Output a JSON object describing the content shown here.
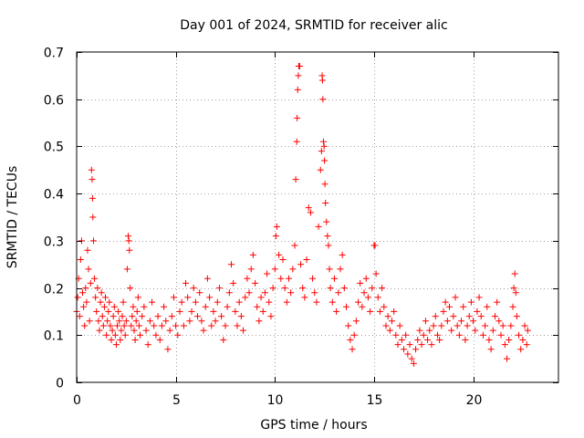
{
  "chart_data": {
    "type": "scatter",
    "title": "Day 001 of 2024, SRMTID for receiver alic",
    "xlabel": "GPS time / hours",
    "ylabel": "SRMTID / TECUs",
    "xlim": [
      0,
      24.3
    ],
    "ylim": [
      0,
      0.7
    ],
    "xticks": [
      0,
      5,
      10,
      15,
      20
    ],
    "xtick_labels": [
      "0",
      "5",
      "10",
      "15",
      "20"
    ],
    "yticks": [
      0,
      0.1,
      0.2,
      0.3,
      0.4,
      0.5,
      0.6,
      0.7
    ],
    "ytick_labels": [
      "0",
      "0.1",
      "0.2",
      "0.3",
      "0.4",
      "0.5",
      "0.6",
      "0.7"
    ],
    "grid": true,
    "marker": "+",
    "color": "#ff0000",
    "series": [
      {
        "name": "SRMTID",
        "points": [
          [
            0.0,
            0.15
          ],
          [
            0.05,
            0.18
          ],
          [
            0.1,
            0.22
          ],
          [
            0.15,
            0.14
          ],
          [
            0.2,
            0.26
          ],
          [
            0.25,
            0.3
          ],
          [
            0.3,
            0.19
          ],
          [
            0.35,
            0.16
          ],
          [
            0.4,
            0.12
          ],
          [
            0.45,
            0.2
          ],
          [
            0.5,
            0.17
          ],
          [
            0.55,
            0.28
          ],
          [
            0.6,
            0.24
          ],
          [
            0.65,
            0.13
          ],
          [
            0.7,
            0.21
          ],
          [
            0.75,
            0.45
          ],
          [
            0.78,
            0.43
          ],
          [
            0.8,
            0.39
          ],
          [
            0.82,
            0.35
          ],
          [
            0.85,
            0.3
          ],
          [
            0.9,
            0.22
          ],
          [
            0.95,
            0.18
          ],
          [
            1.0,
            0.15
          ],
          [
            1.05,
            0.2
          ],
          [
            1.1,
            0.13
          ],
          [
            1.15,
            0.11
          ],
          [
            1.2,
            0.17
          ],
          [
            1.25,
            0.19
          ],
          [
            1.3,
            0.14
          ],
          [
            1.35,
            0.12
          ],
          [
            1.4,
            0.16
          ],
          [
            1.45,
            0.18
          ],
          [
            1.5,
            0.1
          ],
          [
            1.55,
            0.13
          ],
          [
            1.6,
            0.15
          ],
          [
            1.65,
            0.17
          ],
          [
            1.7,
            0.12
          ],
          [
            1.75,
            0.09
          ],
          [
            1.8,
            0.11
          ],
          [
            1.85,
            0.14
          ],
          [
            1.9,
            0.16
          ],
          [
            1.95,
            0.1
          ],
          [
            2.0,
            0.08
          ],
          [
            2.05,
            0.12
          ],
          [
            2.1,
            0.15
          ],
          [
            2.15,
            0.13
          ],
          [
            2.2,
            0.09
          ],
          [
            2.25,
            0.11
          ],
          [
            2.3,
            0.14
          ],
          [
            2.35,
            0.17
          ],
          [
            2.4,
            0.12
          ],
          [
            2.45,
            0.1
          ],
          [
            2.5,
            0.13
          ],
          [
            2.55,
            0.24
          ],
          [
            2.6,
            0.31
          ],
          [
            2.63,
            0.3
          ],
          [
            2.66,
            0.28
          ],
          [
            2.7,
            0.2
          ],
          [
            2.75,
            0.12
          ],
          [
            2.8,
            0.14
          ],
          [
            2.85,
            0.16
          ],
          [
            2.9,
            0.11
          ],
          [
            2.95,
            0.09
          ],
          [
            3.0,
            0.13
          ],
          [
            3.05,
            0.15
          ],
          [
            3.1,
            0.18
          ],
          [
            3.15,
            0.12
          ],
          [
            3.2,
            0.1
          ],
          [
            3.3,
            0.14
          ],
          [
            3.4,
            0.16
          ],
          [
            3.5,
            0.11
          ],
          [
            3.6,
            0.08
          ],
          [
            3.7,
            0.13
          ],
          [
            3.8,
            0.17
          ],
          [
            3.9,
            0.12
          ],
          [
            4.0,
            0.1
          ],
          [
            4.1,
            0.14
          ],
          [
            4.2,
            0.09
          ],
          [
            4.3,
            0.12
          ],
          [
            4.4,
            0.16
          ],
          [
            4.5,
            0.13
          ],
          [
            4.6,
            0.07
          ],
          [
            4.7,
            0.11
          ],
          [
            4.8,
            0.14
          ],
          [
            4.9,
            0.18
          ],
          [
            5.0,
            0.12
          ],
          [
            5.1,
            0.1
          ],
          [
            5.2,
            0.15
          ],
          [
            5.3,
            0.17
          ],
          [
            5.4,
            0.12
          ],
          [
            5.5,
            0.21
          ],
          [
            5.6,
            0.18
          ],
          [
            5.7,
            0.13
          ],
          [
            5.8,
            0.15
          ],
          [
            5.9,
            0.2
          ],
          [
            6.0,
            0.17
          ],
          [
            6.1,
            0.14
          ],
          [
            6.2,
            0.19
          ],
          [
            6.3,
            0.13
          ],
          [
            6.4,
            0.11
          ],
          [
            6.5,
            0.16
          ],
          [
            6.6,
            0.22
          ],
          [
            6.7,
            0.18
          ],
          [
            6.8,
            0.12
          ],
          [
            6.9,
            0.15
          ],
          [
            7.0,
            0.13
          ],
          [
            7.1,
            0.17
          ],
          [
            7.2,
            0.2
          ],
          [
            7.3,
            0.14
          ],
          [
            7.4,
            0.09
          ],
          [
            7.5,
            0.12
          ],
          [
            7.6,
            0.16
          ],
          [
            7.7,
            0.19
          ],
          [
            7.8,
            0.25
          ],
          [
            7.9,
            0.21
          ],
          [
            8.0,
            0.15
          ],
          [
            8.1,
            0.12
          ],
          [
            8.2,
            0.17
          ],
          [
            8.3,
            0.14
          ],
          [
            8.4,
            0.11
          ],
          [
            8.5,
            0.18
          ],
          [
            8.6,
            0.22
          ],
          [
            8.7,
            0.19
          ],
          [
            8.8,
            0.24
          ],
          [
            8.9,
            0.27
          ],
          [
            9.0,
            0.21
          ],
          [
            9.1,
            0.16
          ],
          [
            9.2,
            0.13
          ],
          [
            9.3,
            0.18
          ],
          [
            9.4,
            0.15
          ],
          [
            9.5,
            0.19
          ],
          [
            9.6,
            0.23
          ],
          [
            9.7,
            0.17
          ],
          [
            9.8,
            0.14
          ],
          [
            9.9,
            0.2
          ],
          [
            10.0,
            0.24
          ],
          [
            10.05,
            0.31
          ],
          [
            10.1,
            0.33
          ],
          [
            10.2,
            0.27
          ],
          [
            10.3,
            0.22
          ],
          [
            10.4,
            0.26
          ],
          [
            10.5,
            0.2
          ],
          [
            10.6,
            0.17
          ],
          [
            10.7,
            0.22
          ],
          [
            10.8,
            0.19
          ],
          [
            10.9,
            0.24
          ],
          [
            11.0,
            0.29
          ],
          [
            11.05,
            0.43
          ],
          [
            11.1,
            0.51
          ],
          [
            11.12,
            0.56
          ],
          [
            11.15,
            0.62
          ],
          [
            11.18,
            0.65
          ],
          [
            11.2,
            0.67
          ],
          [
            11.25,
            0.67
          ],
          [
            11.3,
            0.25
          ],
          [
            11.4,
            0.2
          ],
          [
            11.5,
            0.18
          ],
          [
            11.6,
            0.26
          ],
          [
            11.7,
            0.37
          ],
          [
            11.8,
            0.36
          ],
          [
            11.9,
            0.22
          ],
          [
            12.0,
            0.19
          ],
          [
            12.1,
            0.17
          ],
          [
            12.2,
            0.33
          ],
          [
            12.3,
            0.45
          ],
          [
            12.35,
            0.49
          ],
          [
            12.38,
            0.65
          ],
          [
            12.4,
            0.64
          ],
          [
            12.42,
            0.6
          ],
          [
            12.45,
            0.51
          ],
          [
            12.48,
            0.5
          ],
          [
            12.5,
            0.47
          ],
          [
            12.52,
            0.42
          ],
          [
            12.55,
            0.38
          ],
          [
            12.6,
            0.34
          ],
          [
            12.65,
            0.31
          ],
          [
            12.7,
            0.29
          ],
          [
            12.75,
            0.24
          ],
          [
            12.8,
            0.2
          ],
          [
            12.9,
            0.17
          ],
          [
            13.0,
            0.22
          ],
          [
            13.1,
            0.15
          ],
          [
            13.2,
            0.19
          ],
          [
            13.3,
            0.24
          ],
          [
            13.4,
            0.27
          ],
          [
            13.5,
            0.2
          ],
          [
            13.6,
            0.16
          ],
          [
            13.7,
            0.12
          ],
          [
            13.8,
            0.09
          ],
          [
            13.9,
            0.07
          ],
          [
            14.0,
            0.1
          ],
          [
            14.1,
            0.13
          ],
          [
            14.2,
            0.17
          ],
          [
            14.3,
            0.21
          ],
          [
            14.4,
            0.16
          ],
          [
            14.5,
            0.19
          ],
          [
            14.6,
            0.22
          ],
          [
            14.7,
            0.18
          ],
          [
            14.8,
            0.15
          ],
          [
            14.9,
            0.2
          ],
          [
            15.0,
            0.29
          ],
          [
            15.05,
            0.29
          ],
          [
            15.1,
            0.23
          ],
          [
            15.2,
            0.18
          ],
          [
            15.3,
            0.15
          ],
          [
            15.4,
            0.2
          ],
          [
            15.5,
            0.16
          ],
          [
            15.6,
            0.12
          ],
          [
            15.7,
            0.14
          ],
          [
            15.8,
            0.11
          ],
          [
            15.9,
            0.13
          ],
          [
            16.0,
            0.15
          ],
          [
            16.1,
            0.1
          ],
          [
            16.2,
            0.08
          ],
          [
            16.3,
            0.12
          ],
          [
            16.4,
            0.09
          ],
          [
            16.5,
            0.07
          ],
          [
            16.6,
            0.1
          ],
          [
            16.7,
            0.06
          ],
          [
            16.8,
            0.08
          ],
          [
            16.9,
            0.05
          ],
          [
            17.0,
            0.04
          ],
          [
            17.1,
            0.07
          ],
          [
            17.2,
            0.09
          ],
          [
            17.3,
            0.11
          ],
          [
            17.4,
            0.08
          ],
          [
            17.5,
            0.1
          ],
          [
            17.6,
            0.13
          ],
          [
            17.7,
            0.09
          ],
          [
            17.8,
            0.11
          ],
          [
            17.9,
            0.08
          ],
          [
            18.0,
            0.12
          ],
          [
            18.1,
            0.14
          ],
          [
            18.2,
            0.1
          ],
          [
            18.3,
            0.09
          ],
          [
            18.4,
            0.12
          ],
          [
            18.5,
            0.15
          ],
          [
            18.6,
            0.17
          ],
          [
            18.7,
            0.13
          ],
          [
            18.8,
            0.16
          ],
          [
            18.9,
            0.11
          ],
          [
            19.0,
            0.14
          ],
          [
            19.1,
            0.18
          ],
          [
            19.2,
            0.12
          ],
          [
            19.3,
            0.1
          ],
          [
            19.4,
            0.13
          ],
          [
            19.5,
            0.16
          ],
          [
            19.6,
            0.09
          ],
          [
            19.7,
            0.12
          ],
          [
            19.8,
            0.14
          ],
          [
            19.9,
            0.17
          ],
          [
            20.0,
            0.13
          ],
          [
            20.1,
            0.11
          ],
          [
            20.2,
            0.15
          ],
          [
            20.3,
            0.18
          ],
          [
            20.4,
            0.14
          ],
          [
            20.5,
            0.1
          ],
          [
            20.6,
            0.12
          ],
          [
            20.7,
            0.16
          ],
          [
            20.8,
            0.09
          ],
          [
            20.9,
            0.07
          ],
          [
            21.0,
            0.11
          ],
          [
            21.1,
            0.14
          ],
          [
            21.2,
            0.17
          ],
          [
            21.3,
            0.13
          ],
          [
            21.4,
            0.1
          ],
          [
            21.5,
            0.12
          ],
          [
            21.6,
            0.08
          ],
          [
            21.7,
            0.05
          ],
          [
            21.8,
            0.09
          ],
          [
            21.9,
            0.12
          ],
          [
            22.0,
            0.16
          ],
          [
            22.05,
            0.2
          ],
          [
            22.1,
            0.23
          ],
          [
            22.15,
            0.19
          ],
          [
            22.2,
            0.14
          ],
          [
            22.3,
            0.1
          ],
          [
            22.4,
            0.07
          ],
          [
            22.5,
            0.09
          ],
          [
            22.6,
            0.12
          ],
          [
            22.7,
            0.08
          ],
          [
            22.75,
            0.11
          ]
        ]
      }
    ]
  }
}
